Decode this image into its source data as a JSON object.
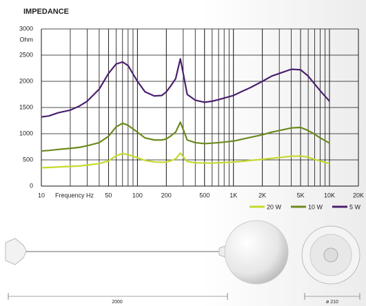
{
  "chart_data": {
    "type": "line",
    "title": "IMPEDANCE",
    "ylabel": "Ohm",
    "xlabel": "Frequency Hz",
    "xscale": "log",
    "grid": true,
    "xlim": [
      10,
      20000
    ],
    "ylim": [
      0,
      3000
    ],
    "xticks": [
      10,
      50,
      100,
      200,
      500,
      {
        "value": 1000,
        "label": "1K"
      },
      {
        "value": 2000,
        "label": "2K"
      },
      {
        "value": 5000,
        "label": "5K"
      },
      {
        "value": 10000,
        "label": "10K"
      },
      {
        "value": 20000,
        "label": "20K"
      }
    ],
    "yticks": [
      0,
      500,
      1000,
      1500,
      2000,
      2500,
      3000
    ],
    "x": [
      10,
      12,
      15,
      20,
      25,
      30,
      40,
      50,
      60,
      70,
      80,
      100,
      120,
      150,
      180,
      200,
      220,
      250,
      280,
      300,
      330,
      400,
      500,
      600,
      700,
      800,
      1000,
      1200,
      1500,
      2000,
      2500,
      3000,
      4000,
      5000,
      6000,
      7000,
      8000,
      10000
    ],
    "series": [
      {
        "name": "20 W",
        "color": "#c5d92d",
        "values": [
          350,
          355,
          365,
          375,
          385,
          400,
          430,
          480,
          580,
          620,
          600,
          540,
          490,
          460,
          455,
          460,
          480,
          520,
          630,
          560,
          470,
          445,
          440,
          440,
          445,
          450,
          460,
          470,
          490,
          510,
          530,
          545,
          570,
          575,
          550,
          510,
          480,
          430
        ]
      },
      {
        "name": "10 W",
        "color": "#6b8a1e",
        "values": [
          670,
          680,
          700,
          720,
          740,
          770,
          830,
          950,
          1130,
          1200,
          1160,
          1030,
          920,
          880,
          880,
          900,
          950,
          1030,
          1220,
          1080,
          880,
          830,
          810,
          820,
          830,
          840,
          860,
          890,
          930,
          980,
          1030,
          1060,
          1110,
          1120,
          1060,
          990,
          920,
          820
        ]
      },
      {
        "name": "5 W",
        "color": "#4a1f6e",
        "values": [
          1320,
          1340,
          1400,
          1450,
          1530,
          1620,
          1850,
          2150,
          2330,
          2370,
          2300,
          2000,
          1800,
          1720,
          1730,
          1800,
          1900,
          2050,
          2430,
          2150,
          1750,
          1640,
          1600,
          1620,
          1650,
          1680,
          1730,
          1800,
          1880,
          2000,
          2100,
          2150,
          2230,
          2220,
          2100,
          1950,
          1820,
          1620
        ]
      }
    ]
  },
  "product": {
    "length_label": "2000",
    "diameter_label": "ø 210"
  }
}
